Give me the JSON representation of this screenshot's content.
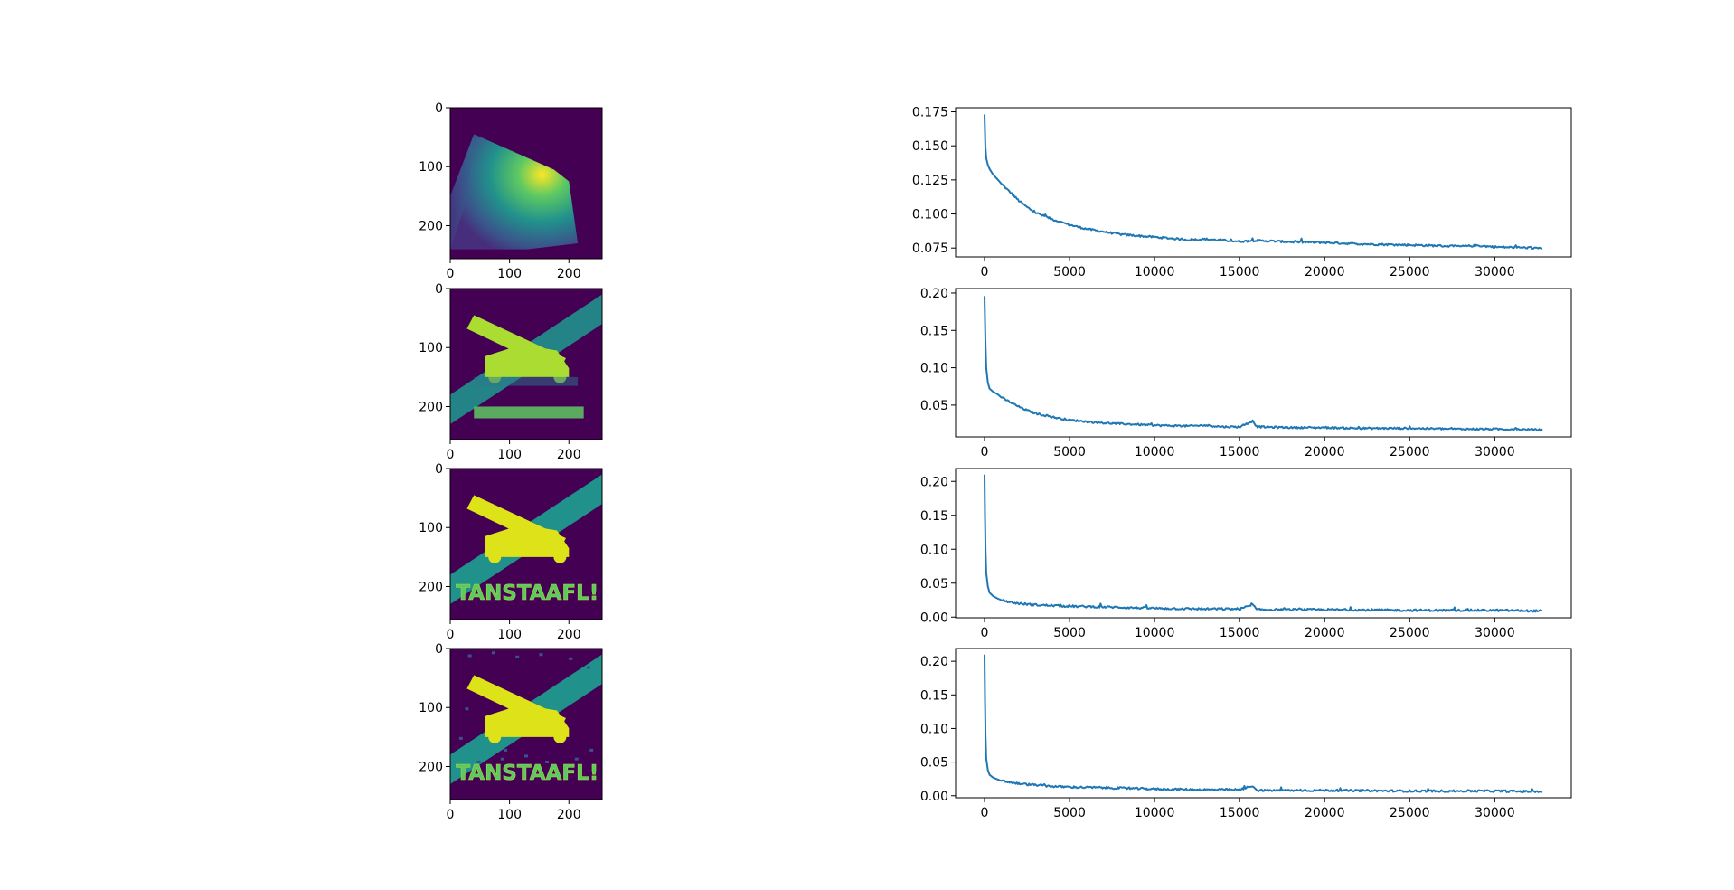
{
  "colors": {
    "line": "#1f77b4",
    "viridis_dark": "#440154",
    "viridis_mid": "#21918c",
    "viridis_light": "#5ec962",
    "viridis_bright": "#fde725",
    "viridis_yellow": "#dde318"
  },
  "image_panels": [
    {
      "xticks": [
        0,
        100,
        200
      ],
      "yticks": [
        0,
        100,
        200
      ],
      "xlim": [
        0,
        256
      ],
      "ylim": [
        256,
        0
      ],
      "text": ""
    },
    {
      "xticks": [
        0,
        100,
        200
      ],
      "yticks": [
        0,
        100,
        200
      ],
      "xlim": [
        0,
        256
      ],
      "ylim": [
        256,
        0
      ],
      "text": ""
    },
    {
      "xticks": [
        0,
        100,
        200
      ],
      "yticks": [
        0,
        100,
        200
      ],
      "xlim": [
        0,
        256
      ],
      "ylim": [
        256,
        0
      ],
      "text": "TANSTAAFL!"
    },
    {
      "xticks": [
        0,
        100,
        200
      ],
      "yticks": [
        0,
        100,
        200
      ],
      "xlim": [
        0,
        256
      ],
      "ylim": [
        256,
        0
      ],
      "text": "TANSTAAFL!"
    }
  ],
  "chart_data": [
    {
      "type": "line",
      "xlim": [
        -1700,
        34500
      ],
      "ylim": [
        0.0685,
        0.178
      ],
      "xticks": [
        0,
        5000,
        10000,
        15000,
        20000,
        25000,
        30000
      ],
      "yticks": [
        0.075,
        0.1,
        0.125,
        0.15,
        0.175
      ],
      "ytick_labels": [
        "0.075",
        "0.100",
        "0.125",
        "0.150",
        "0.175"
      ],
      "series": [
        {
          "x": [
            0,
            50,
            100,
            200,
            300,
            500,
            800,
            1000,
            1500,
            2000,
            2500,
            3000,
            4000,
            5000,
            6000,
            7000,
            8000,
            10000,
            12000,
            13000,
            15000,
            16000,
            18000,
            20000,
            22000,
            25000,
            28000,
            29000,
            30000,
            32000,
            32800
          ],
          "y": [
            0.173,
            0.15,
            0.141,
            0.136,
            0.133,
            0.129,
            0.125,
            0.122,
            0.116,
            0.11,
            0.105,
            0.101,
            0.096,
            0.092,
            0.089,
            0.087,
            0.085,
            0.083,
            0.081,
            0.0815,
            0.0798,
            0.0805,
            0.0795,
            0.079,
            0.078,
            0.0772,
            0.0762,
            0.0768,
            0.0758,
            0.0752,
            0.075
          ],
          "noise": 0.0007
        }
      ]
    },
    {
      "type": "line",
      "xlim": [
        -1700,
        34500
      ],
      "ylim": [
        0.0075,
        0.206
      ],
      "xticks": [
        0,
        5000,
        10000,
        15000,
        20000,
        25000,
        30000
      ],
      "yticks": [
        0.05,
        0.1,
        0.15,
        0.2
      ],
      "ytick_labels": [
        "0.05",
        "0.10",
        "0.15",
        "0.20"
      ],
      "series": [
        {
          "x": [
            0,
            50,
            100,
            200,
            300,
            500,
            800,
            1000,
            1500,
            2000,
            2500,
            3000,
            4000,
            5000,
            6000,
            7000,
            8000,
            10000,
            12000,
            13000,
            14000,
            15000,
            15800,
            16000,
            18000,
            20000,
            22000,
            25000,
            28000,
            30000,
            32800
          ],
          "y": [
            0.196,
            0.14,
            0.1,
            0.08,
            0.072,
            0.068,
            0.064,
            0.06,
            0.054,
            0.048,
            0.043,
            0.039,
            0.034,
            0.03,
            0.028,
            0.026,
            0.025,
            0.023,
            0.022,
            0.023,
            0.021,
            0.021,
            0.029,
            0.021,
            0.02,
            0.02,
            0.019,
            0.019,
            0.018,
            0.018,
            0.017
          ],
          "noise": 0.0012
        }
      ]
    },
    {
      "type": "line",
      "xlim": [
        -1700,
        34500
      ],
      "ylim": [
        -0.001,
        0.219
      ],
      "xticks": [
        0,
        5000,
        10000,
        15000,
        20000,
        25000,
        30000
      ],
      "yticks": [
        0.0,
        0.05,
        0.1,
        0.15,
        0.2
      ],
      "ytick_labels": [
        "0.00",
        "0.05",
        "0.10",
        "0.15",
        "0.20"
      ],
      "series": [
        {
          "x": [
            0,
            30,
            60,
            100,
            200,
            300,
            500,
            800,
            1000,
            1500,
            2000,
            3000,
            4000,
            5000,
            7000,
            10000,
            13000,
            15000,
            15800,
            16000,
            20000,
            25000,
            30000,
            32800
          ],
          "y": [
            0.21,
            0.15,
            0.1,
            0.065,
            0.045,
            0.036,
            0.031,
            0.027,
            0.025,
            0.022,
            0.02,
            0.018,
            0.017,
            0.016,
            0.015,
            0.013,
            0.012,
            0.012,
            0.018,
            0.011,
            0.011,
            0.01,
            0.01,
            0.009
          ],
          "noise": 0.0015
        }
      ]
    },
    {
      "type": "line",
      "xlim": [
        -1700,
        34500
      ],
      "ylim": [
        -0.003,
        0.219
      ],
      "xticks": [
        0,
        5000,
        10000,
        15000,
        20000,
        25000,
        30000
      ],
      "yticks": [
        0.0,
        0.05,
        0.1,
        0.15,
        0.2
      ],
      "ytick_labels": [
        "0.00",
        "0.05",
        "0.10",
        "0.15",
        "0.20"
      ],
      "series": [
        {
          "x": [
            0,
            30,
            60,
            100,
            200,
            300,
            500,
            800,
            1000,
            1500,
            2000,
            3000,
            4000,
            5000,
            7000,
            10000,
            13000,
            15000,
            15800,
            16000,
            20000,
            25000,
            30000,
            32800
          ],
          "y": [
            0.21,
            0.145,
            0.09,
            0.055,
            0.038,
            0.031,
            0.027,
            0.024,
            0.022,
            0.02,
            0.018,
            0.016,
            0.014,
            0.013,
            0.012,
            0.01,
            0.009,
            0.009,
            0.015,
            0.008,
            0.008,
            0.007,
            0.007,
            0.006
          ],
          "noise": 0.0015
        }
      ]
    }
  ]
}
